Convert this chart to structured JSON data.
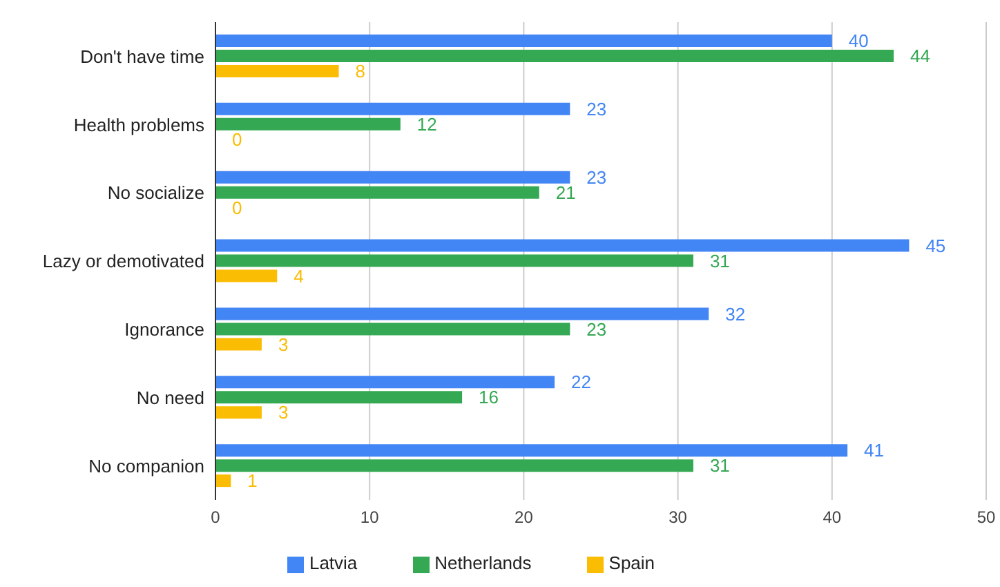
{
  "chart_data": {
    "type": "bar",
    "orientation": "horizontal",
    "categories": [
      "Don't have time",
      "Health problems",
      "No socialize",
      "Lazy or demotivated",
      "Ignorance",
      "No need",
      "No companion"
    ],
    "series": [
      {
        "name": "Latvia",
        "color": "#4285f4",
        "values": [
          40,
          23,
          23,
          45,
          32,
          22,
          41
        ]
      },
      {
        "name": "Netherlands",
        "color": "#34a853",
        "values": [
          44,
          12,
          21,
          31,
          23,
          16,
          31
        ]
      },
      {
        "name": "Spain",
        "color": "#fbbc04",
        "values": [
          8,
          0,
          0,
          4,
          3,
          3,
          1
        ]
      }
    ],
    "xlim": [
      0,
      50
    ],
    "xticks": [
      0,
      10,
      20,
      30,
      40,
      50
    ],
    "grid": "x",
    "legend": "bottom",
    "data_labels": true
  }
}
